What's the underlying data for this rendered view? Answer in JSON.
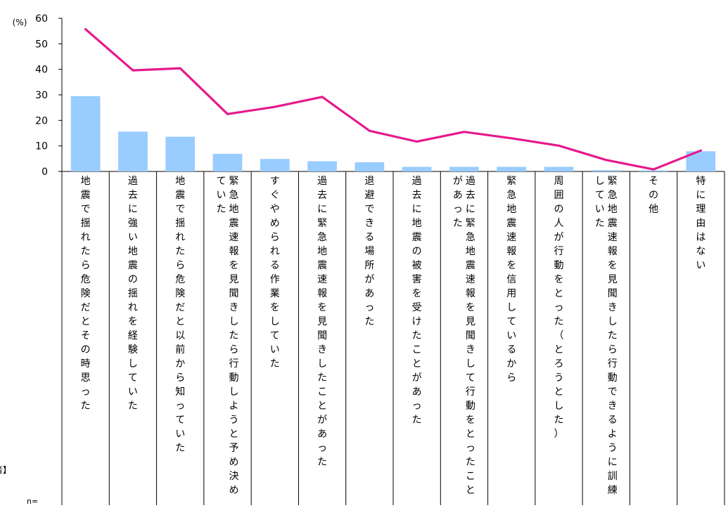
{
  "chart_data": {
    "type": "bar",
    "y_unit_label": "(%)",
    "ylim": [
      0,
      60
    ],
    "yticks": [
      0,
      10,
      20,
      30,
      40,
      50,
      60
    ],
    "grid": false,
    "categories": [
      "地震で揺れたら危険だとその時思った",
      "過去に強い地震の揺れを経験していた",
      "地震で揺れたら危険だと以前から知っていた",
      "緊急地震速報を見聞きしたら行動しようと予め決めていた",
      "すぐやめられる作業をしていた",
      "過去に緊急地震速報を見聞きしたことがあった",
      "退避できる場所があった",
      "過去に地震の被害を受けたことがあった",
      "過去に緊急地震速報を見聞きして行動をとったことがあった",
      "緊急地震速報を信用しているから",
      "周囲の人が行動をとった（とろうとした）",
      "緊急地震速報を見聞きしたら行動できるように訓練していた",
      "その他",
      "特に理由はない"
    ],
    "series": [
      {
        "kind": "bar",
        "color": "#99ccff",
        "values": [
          29.5,
          15.6,
          13.6,
          6.9,
          4.9,
          4.0,
          3.6,
          1.8,
          1.8,
          1.8,
          1.8,
          0.5,
          0.4,
          7.9
        ]
      },
      {
        "kind": "line",
        "color": "#e6198c",
        "values": [
          55.7,
          39.6,
          40.4,
          22.5,
          25.3,
          29.2,
          15.9,
          11.7,
          15.5,
          13.0,
          10.1,
          4.5,
          0.8,
          8.2
        ]
      }
    ],
    "left_fragments": [
      "者】",
      "n="
    ]
  }
}
